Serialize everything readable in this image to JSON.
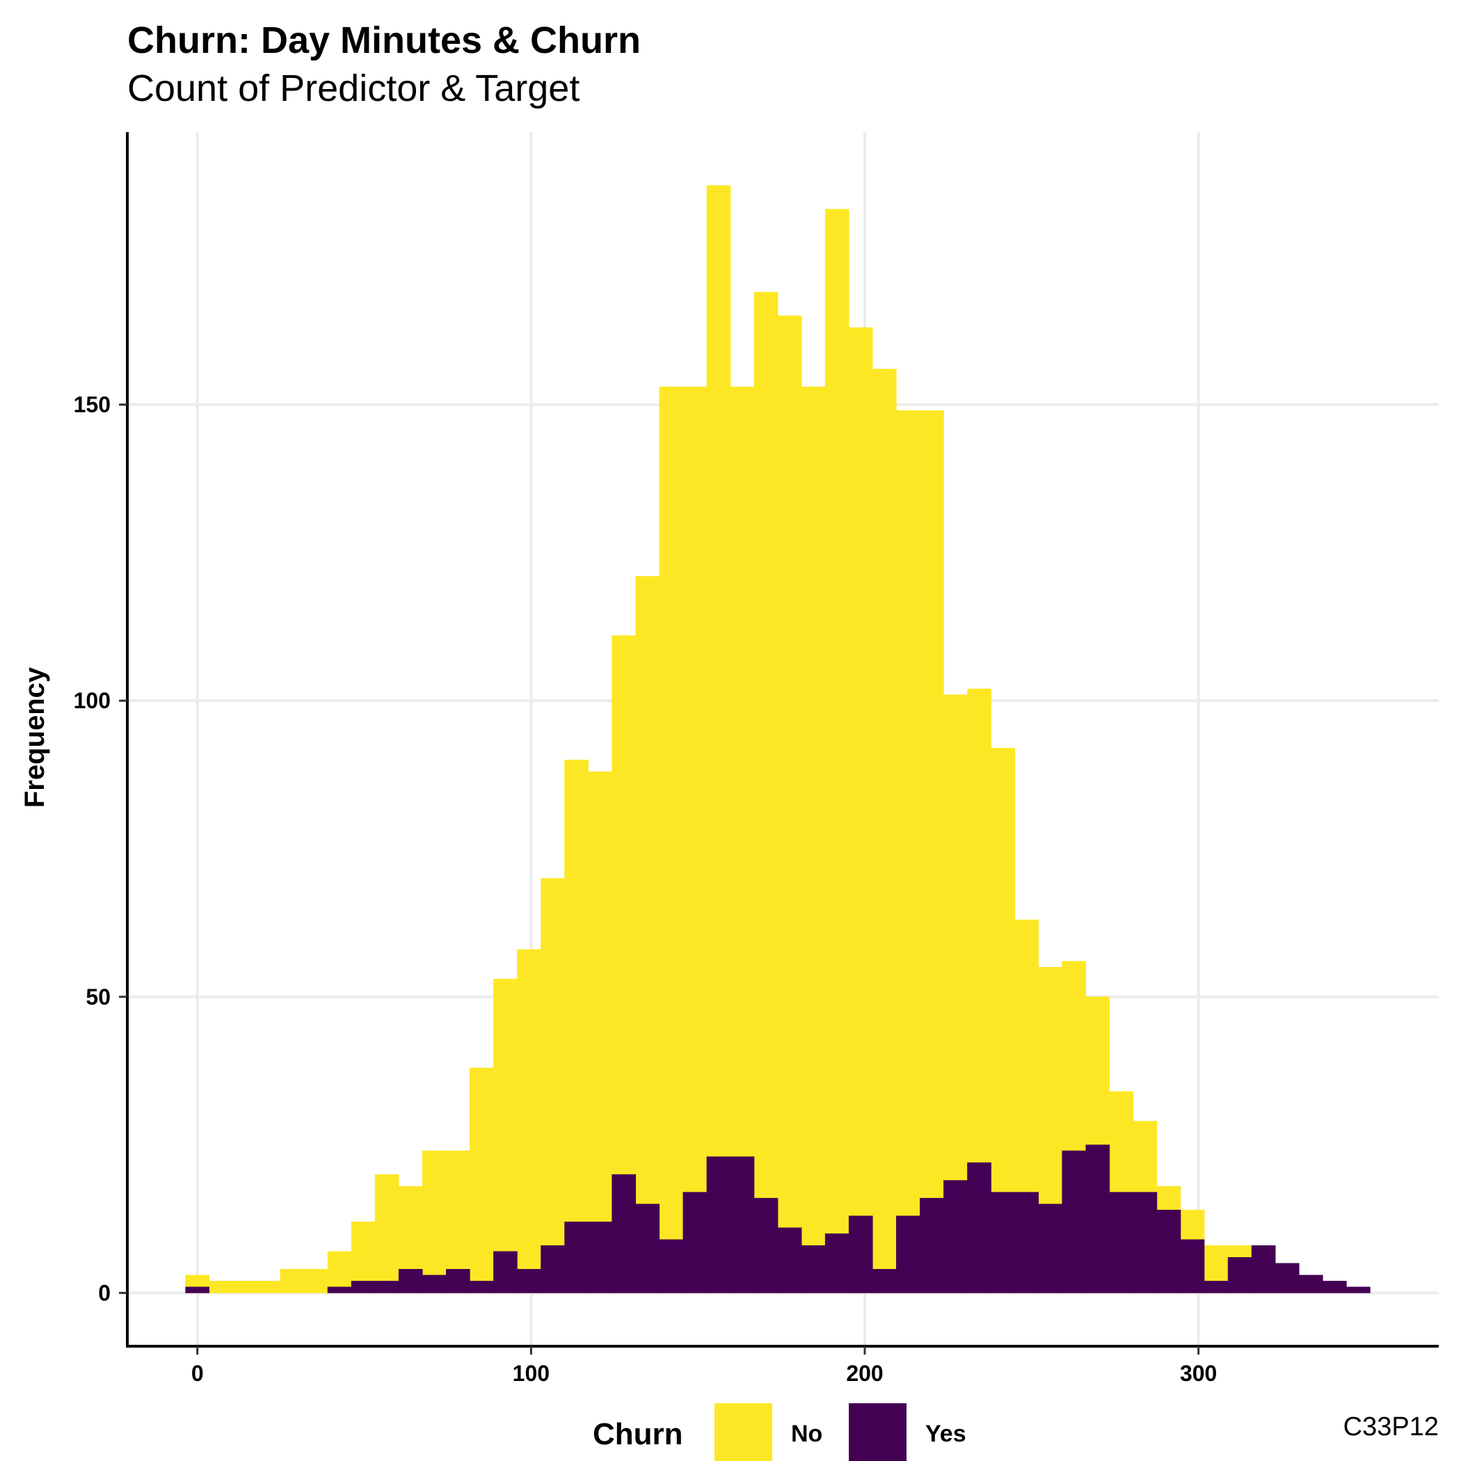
{
  "chart_data": {
    "type": "bar",
    "title": "Churn: Day Minutes & Churn",
    "subtitle": "Count of Predictor & Target",
    "xlabel": "",
    "ylabel": "Frequency",
    "caption": "C33P12",
    "x_ticks": [
      0,
      100,
      200,
      300
    ],
    "y_ticks": [
      0,
      50,
      100,
      150
    ],
    "xlim": [
      -21,
      372
    ],
    "ylim": [
      -9,
      196
    ],
    "grid": true,
    "bin_width": 7.1,
    "bin_start": -3.55,
    "stacked": "overlay",
    "legend": {
      "title": "Churn",
      "position": "bottom",
      "entries": [
        {
          "label": "No",
          "color": "#FDE725"
        },
        {
          "label": "Yes",
          "color": "#440154"
        }
      ]
    },
    "bin_centers": [
      0,
      7.1,
      14.2,
      21.3,
      28.4,
      35.5,
      42.6,
      49.7,
      56.8,
      63.9,
      71,
      78.1,
      85.2,
      92.3,
      99.4,
      106.5,
      113.6,
      120.7,
      127.8,
      134.9,
      142,
      149.1,
      156.2,
      163.3,
      170.4,
      177.5,
      184.6,
      191.7,
      198.8,
      205.9,
      213,
      220.1,
      227.2,
      234.3,
      241.4,
      248.5,
      255.6,
      262.7,
      269.8,
      276.9,
      284,
      291.1,
      298.2,
      305.3,
      312.4,
      319.5,
      326.6,
      333.7,
      340.8,
      347.9
    ],
    "series": [
      {
        "name": "No",
        "color": "#FDE725",
        "values": [
          3,
          2,
          2,
          2,
          4,
          4,
          7,
          12,
          20,
          18,
          24,
          24,
          38,
          53,
          58,
          70,
          90,
          88,
          111,
          121,
          153,
          153,
          187,
          153,
          169,
          165,
          153,
          183,
          163,
          156,
          149,
          149,
          101,
          102,
          92,
          63,
          55,
          56,
          50,
          34,
          29,
          18,
          14,
          8,
          8,
          5,
          0,
          0,
          0,
          0
        ]
      },
      {
        "name": "Yes",
        "color": "#440154",
        "values": [
          1,
          0,
          0,
          0,
          0,
          0,
          1,
          2,
          2,
          4,
          3,
          4,
          2,
          7,
          4,
          8,
          12,
          12,
          20,
          15,
          9,
          17,
          23,
          23,
          16,
          11,
          8,
          10,
          13,
          4,
          13,
          16,
          19,
          22,
          17,
          17,
          15,
          24,
          25,
          17,
          17,
          14,
          9,
          2,
          6,
          8,
          5,
          3,
          2,
          1
        ]
      }
    ]
  }
}
